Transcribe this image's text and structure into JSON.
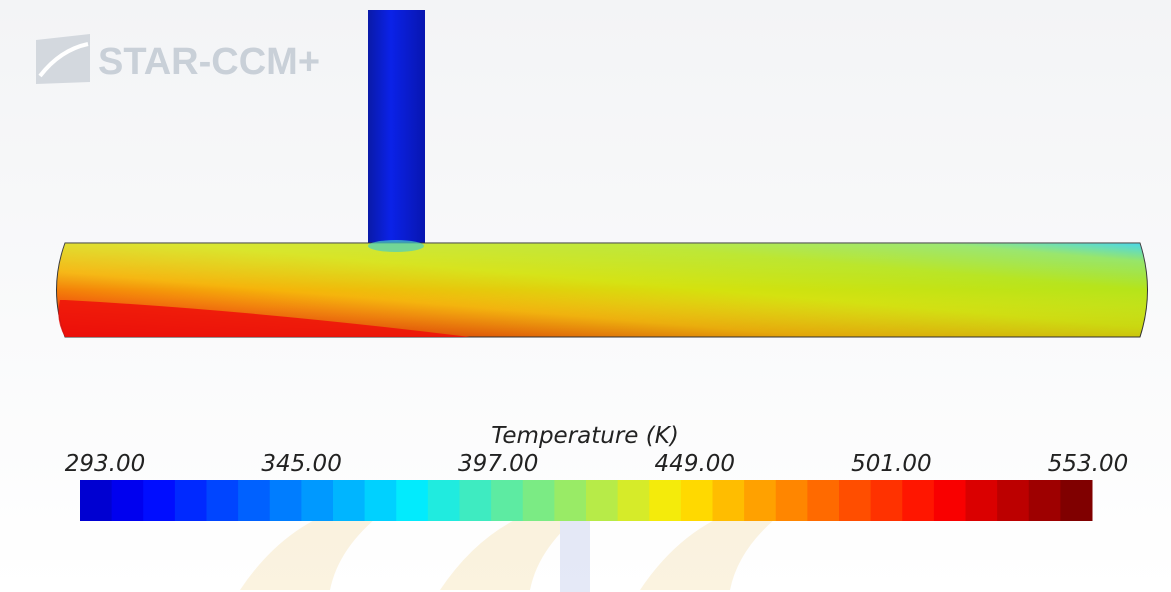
{
  "logo": {
    "text": "STAR-CCM+"
  },
  "legend": {
    "title": "Temperature (K)",
    "ticks": [
      {
        "value": 293,
        "label": "293.00"
      },
      {
        "value": 345,
        "label": "345.00"
      },
      {
        "value": 397,
        "label": "397.00"
      },
      {
        "value": 449,
        "label": "449.00"
      },
      {
        "value": 501,
        "label": "501.00"
      },
      {
        "value": 553,
        "label": "553.00"
      }
    ]
  }
}
